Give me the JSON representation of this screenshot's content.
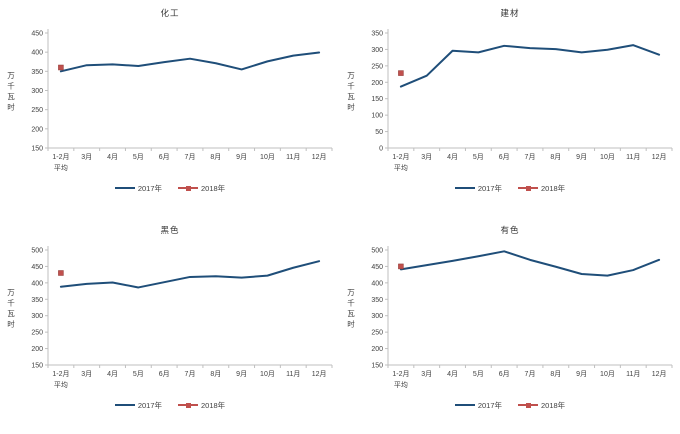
{
  "page": {
    "background": "#ffffff"
  },
  "colors": {
    "axis": "#BFBFBF",
    "tick_text": "#404040",
    "title_text": "#333333",
    "line_2017": "#1F4E79",
    "marker_2018": "#C0504D",
    "marker_2018_border": "#8E3B37"
  },
  "chart_data": [
    {
      "type": "line",
      "title": "化工",
      "ylabel": "万千瓦时",
      "xlabel": "",
      "categories": [
        "1-2月\n平均",
        "3月",
        "4月",
        "5月",
        "6月",
        "7月",
        "8月",
        "9月",
        "10月",
        "11月",
        "12月"
      ],
      "ylim": [
        150,
        450
      ],
      "ytick_step": 50,
      "grid": false,
      "legend_position": "bottom",
      "series": [
        {
          "name": "2017年",
          "type": "line",
          "color": "#1F4E79",
          "values": [
            350,
            366,
            368,
            364,
            374,
            383,
            371,
            355,
            376,
            391,
            399
          ]
        },
        {
          "name": "2018年",
          "type": "scatter-square",
          "color": "#C0504D",
          "values": [
            360,
            null,
            null,
            null,
            null,
            null,
            null,
            null,
            null,
            null,
            null
          ]
        }
      ]
    },
    {
      "type": "line",
      "title": "建材",
      "ylabel": "万千瓦时",
      "xlabel": "",
      "categories": [
        "1-2月\n平均",
        "3月",
        "4月",
        "5月",
        "6月",
        "7月",
        "8月",
        "9月",
        "10月",
        "11月",
        "12月"
      ],
      "ylim": [
        0,
        350
      ],
      "ytick_step": 50,
      "grid": false,
      "legend_position": "bottom",
      "series": [
        {
          "name": "2017年",
          "type": "line",
          "color": "#1F4E79",
          "values": [
            187,
            220,
            296,
            291,
            311,
            304,
            301,
            291,
            299,
            313,
            284
          ]
        },
        {
          "name": "2018年",
          "type": "scatter-square",
          "color": "#C0504D",
          "values": [
            228,
            null,
            null,
            null,
            null,
            null,
            null,
            null,
            null,
            null,
            null
          ]
        }
      ]
    },
    {
      "type": "line",
      "title": "黑色",
      "ylabel": "万千瓦时",
      "xlabel": "",
      "categories": [
        "1-2月\n平均",
        "3月",
        "4月",
        "5月",
        "6月",
        "7月",
        "8月",
        "9月",
        "10月",
        "11月",
        "12月"
      ],
      "ylim": [
        150,
        500
      ],
      "ytick_step": 50,
      "grid": false,
      "legend_position": "bottom",
      "series": [
        {
          "name": "2017年",
          "type": "line",
          "color": "#1F4E79",
          "values": [
            388,
            397,
            401,
            386,
            402,
            418,
            420,
            416,
            422,
            446,
            466
          ]
        },
        {
          "name": "2018年",
          "type": "scatter-square",
          "color": "#C0504D",
          "values": [
            430,
            null,
            null,
            null,
            null,
            null,
            null,
            null,
            null,
            null,
            null
          ]
        }
      ]
    },
    {
      "type": "line",
      "title": "有色",
      "ylabel": "万千瓦时",
      "xlabel": "",
      "categories": [
        "1-2月\n平均",
        "3月",
        "4月",
        "5月",
        "6月",
        "7月",
        "8月",
        "9月",
        "10月",
        "11月",
        "12月"
      ],
      "ylim": [
        150,
        500
      ],
      "ytick_step": 50,
      "grid": false,
      "legend_position": "bottom",
      "series": [
        {
          "name": "2017年",
          "type": "line",
          "color": "#1F4E79",
          "values": [
            441,
            454,
            467,
            481,
            496,
            470,
            449,
            427,
            422,
            439,
            470
          ]
        },
        {
          "name": "2018年",
          "type": "scatter-square",
          "color": "#C0504D",
          "values": [
            450,
            null,
            null,
            null,
            null,
            null,
            null,
            null,
            null,
            null,
            null
          ]
        }
      ]
    }
  ]
}
